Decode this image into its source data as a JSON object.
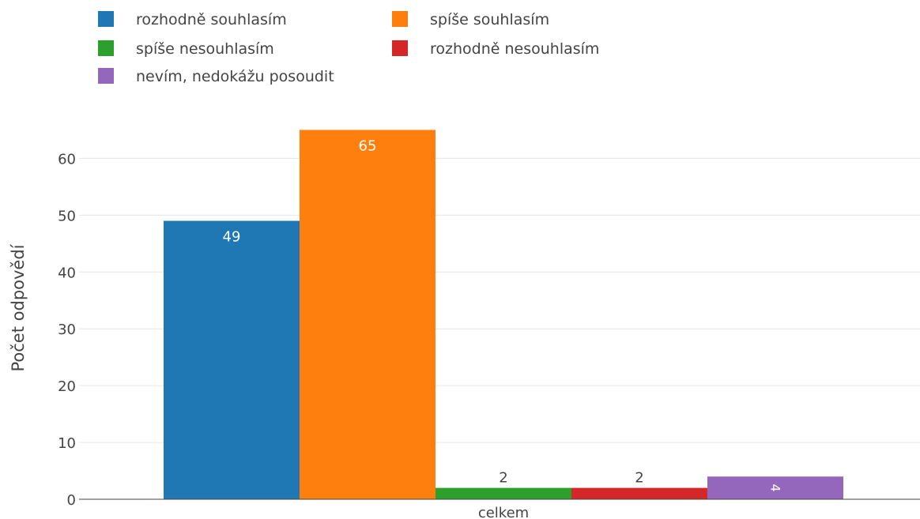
{
  "chart_data": {
    "type": "bar",
    "categories": [
      "celkem"
    ],
    "series": [
      {
        "name": "rozhodně souhlasím",
        "values": [
          49
        ],
        "color": "#1f77b4"
      },
      {
        "name": "spíše souhlasím",
        "values": [
          65
        ],
        "color": "#ff7f0e"
      },
      {
        "name": "spíše nesouhlasím",
        "values": [
          2
        ],
        "color": "#2ca02c"
      },
      {
        "name": "rozhodně nesouhlasím",
        "values": [
          2
        ],
        "color": "#d62728"
      },
      {
        "name": "nevím, nedokážu posoudit",
        "values": [
          4
        ],
        "color": "#9467bd"
      }
    ],
    "title": "",
    "xlabel": "",
    "ylabel": "Počet odpovědí",
    "ylim": [
      0,
      68.4
    ],
    "yticks": [
      0,
      10,
      20,
      30,
      40,
      50,
      60
    ],
    "grid": true,
    "legend_position": "top-left"
  }
}
